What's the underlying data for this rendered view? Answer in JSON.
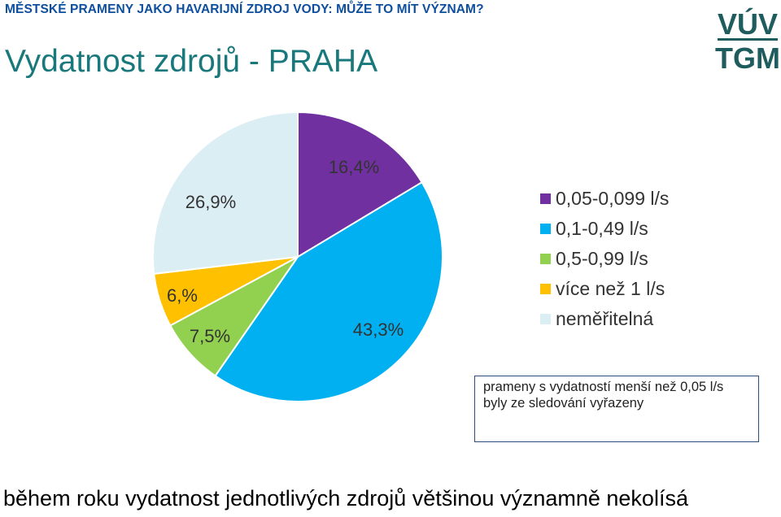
{
  "header": {
    "subtitle": "MĚSTSKÉ PRAMENY JAKO HAVARIJNÍ ZDROJ VODY: MŮŽE TO MÍT VÝZNAM?",
    "title": "Vydatnost zdrojů - PRAHA"
  },
  "logo": {
    "line1": "VÚV",
    "line2": "TGM",
    "color": "#1f5c5e"
  },
  "chart_data": {
    "type": "pie",
    "start_angle_deg": 0,
    "direction": "clockwise",
    "series": [
      {
        "name": "0,05-0,099 l/s",
        "value": 16.4,
        "label": "16,4%",
        "color": "#7030a0"
      },
      {
        "name": "0,1-0,49 l/s",
        "value": 43.3,
        "label": "43,3%",
        "color": "#00b0f0"
      },
      {
        "name": "0,5-0,99 l/s",
        "value": 7.5,
        "label": "7,5%",
        "color": "#92d050"
      },
      {
        "name": "více než 1 l/s",
        "value": 6.0,
        "label": "6,%",
        "color": "#ffc000"
      },
      {
        "name": "neměřitelná",
        "value": 26.9,
        "label": "26,9%",
        "color": "#dbeef4"
      }
    ],
    "legend_position": "right"
  },
  "note": "prameny s vydatností menší než 0,05 l/s byly ze sledování vyřazeny",
  "footer": "během roku vydatnost jednotlivých zdrojů většinou významně nekolísá"
}
